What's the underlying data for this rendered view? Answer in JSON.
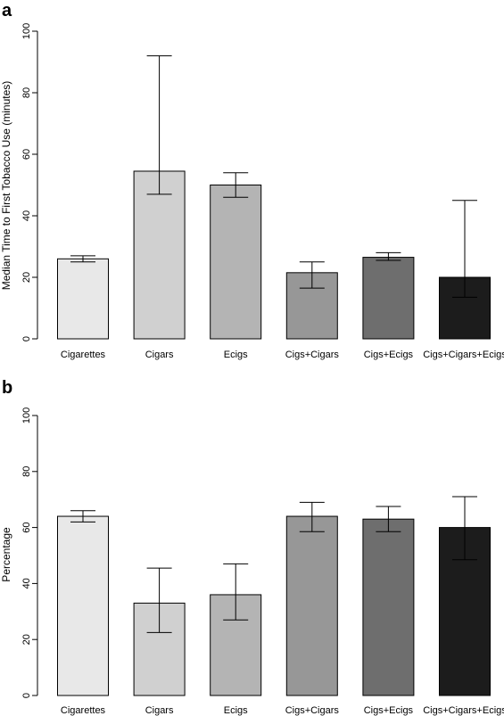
{
  "chart_data": [
    {
      "panel": "a",
      "type": "bar",
      "title": "",
      "xlabel": "",
      "ylabel": "Median Time to First Tobacco Use (minutes)",
      "ylim": [
        0,
        100
      ],
      "yticks": [
        0,
        20,
        40,
        60,
        80,
        100
      ],
      "grid": false,
      "categories": [
        "Cigarettes",
        "Cigars",
        "Ecigs",
        "Cigs+Cigars",
        "Cigs+Ecigs",
        "Cigs+Cigars+Ecigs"
      ],
      "values": [
        26,
        54.5,
        50,
        21.5,
        26.5,
        20
      ],
      "error_low": [
        25,
        47,
        46,
        16.5,
        25.5,
        13.5
      ],
      "error_high": [
        27,
        92,
        54,
        25,
        28,
        45
      ],
      "colors": [
        "#e8e8e8",
        "#d0d0d0",
        "#b4b4b4",
        "#979797",
        "#6e6e6e",
        "#1c1c1c"
      ]
    },
    {
      "panel": "b",
      "type": "bar",
      "title": "",
      "xlabel": "",
      "ylabel": "Percentage",
      "ylim": [
        0,
        100
      ],
      "yticks": [
        0,
        20,
        40,
        60,
        80,
        100
      ],
      "grid": false,
      "categories": [
        "Cigarettes",
        "Cigars",
        "Ecigs",
        "Cigs+Cigars",
        "Cigs+Ecigs",
        "Cigs+Cigars+Ecigs"
      ],
      "values": [
        64,
        33,
        36,
        64,
        63,
        60
      ],
      "error_low": [
        62,
        22.5,
        27,
        58.5,
        58.5,
        48.5
      ],
      "error_high": [
        66,
        45.5,
        47,
        69,
        67.5,
        71
      ],
      "colors": [
        "#e8e8e8",
        "#d0d0d0",
        "#b4b4b4",
        "#979797",
        "#6e6e6e",
        "#1c1c1c"
      ]
    }
  ]
}
